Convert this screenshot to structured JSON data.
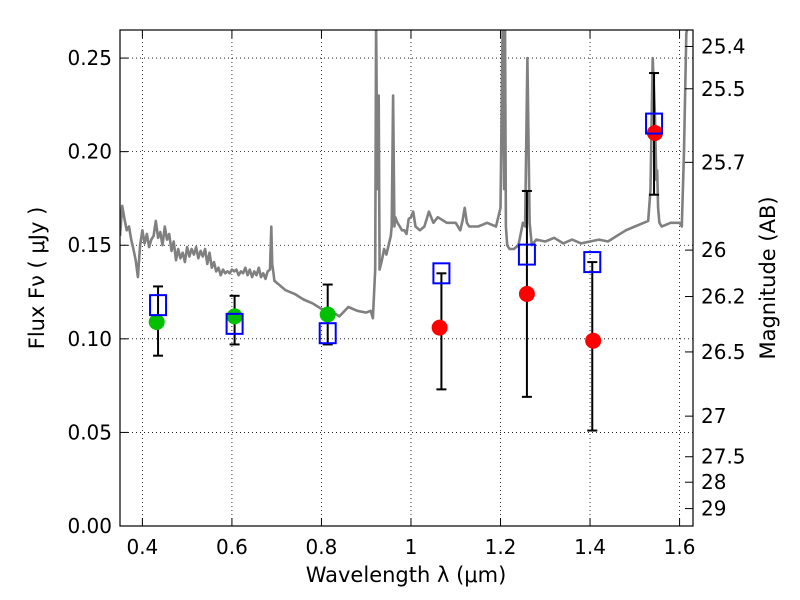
{
  "chart_data": {
    "type": "scatter",
    "xlabel": "Wavelength  λ (μm)",
    "ylabel": "Flux  Fν  ( μJy )",
    "ylabel_right": "Magnitude (AB)",
    "xlim": [
      0.35,
      1.63
    ],
    "ylim": [
      0.0,
      0.265
    ],
    "grid": true,
    "x_ticks": [
      {
        "value": 0.4,
        "label": "0.4"
      },
      {
        "value": 0.6,
        "label": "0.6"
      },
      {
        "value": 0.8,
        "label": "0.8"
      },
      {
        "value": 1.0,
        "label": "1"
      },
      {
        "value": 1.2,
        "label": "1.2"
      },
      {
        "value": 1.4,
        "label": "1.4"
      },
      {
        "value": 1.6,
        "label": "1.6"
      }
    ],
    "y_ticks": [
      {
        "value": 0.0,
        "label": "0.00"
      },
      {
        "value": 0.05,
        "label": "0.05"
      },
      {
        "value": 0.1,
        "label": "0.10"
      },
      {
        "value": 0.15,
        "label": "0.15"
      },
      {
        "value": 0.2,
        "label": "0.20"
      },
      {
        "value": 0.25,
        "label": "0.25"
      }
    ],
    "right_ticks": [
      {
        "label": "25.4",
        "flux": 0.2562
      },
      {
        "label": "25.5",
        "flux": 0.2336
      },
      {
        "label": "25.7",
        "flux": 0.1943
      },
      {
        "label": "26",
        "flux": 0.1474
      },
      {
        "label": "26.2",
        "flux": 0.1226
      },
      {
        "label": "26.5",
        "flux": 0.093
      },
      {
        "label": "27",
        "flux": 0.0587
      },
      {
        "label": "27.5",
        "flux": 0.037
      },
      {
        "label": "28",
        "flux": 0.0234
      },
      {
        "label": "29",
        "flux": 0.0093
      }
    ],
    "series": [
      {
        "name": "green points",
        "marker": "circle",
        "color": "#00c000",
        "points": [
          {
            "x": 0.432,
            "y": 0.109
          },
          {
            "x": 0.606,
            "y": 0.112
          },
          {
            "x": 0.814,
            "y": 0.113
          }
        ]
      },
      {
        "name": "red points",
        "marker": "circle",
        "color": "#ff0000",
        "points": [
          {
            "x": 1.064,
            "y": 0.106
          },
          {
            "x": 1.259,
            "y": 0.124
          },
          {
            "x": 1.407,
            "y": 0.099
          },
          {
            "x": 1.545,
            "y": 0.21
          }
        ]
      },
      {
        "name": "open squares with error bars",
        "marker": "square-open",
        "color": "#0000ff",
        "points": [
          {
            "x": 0.435,
            "y": 0.118,
            "yerr_low": 0.091,
            "yerr_high": 0.128
          },
          {
            "x": 0.606,
            "y": 0.108,
            "yerr_low": 0.097,
            "yerr_high": 0.123
          },
          {
            "x": 0.814,
            "y": 0.103,
            "yerr_low": 0.097,
            "yerr_high": 0.129
          },
          {
            "x": 1.068,
            "y": 0.135,
            "yerr_low": 0.073,
            "yerr_high": 0.135
          },
          {
            "x": 1.259,
            "y": 0.145,
            "yerr_low": 0.069,
            "yerr_high": 0.179
          },
          {
            "x": 1.405,
            "y": 0.141,
            "yerr_low": 0.051,
            "yerr_high": 0.141
          },
          {
            "x": 1.543,
            "y": 0.215,
            "yerr_low": 0.177,
            "yerr_high": 0.242
          }
        ]
      },
      {
        "name": "model spectrum",
        "type": "line",
        "color": "#808080",
        "x": [
          0.35,
          0.355,
          0.36,
          0.365,
          0.37,
          0.375,
          0.38,
          0.385,
          0.39,
          0.395,
          0.4,
          0.405,
          0.41,
          0.415,
          0.42,
          0.425,
          0.43,
          0.435,
          0.44,
          0.445,
          0.45,
          0.455,
          0.46,
          0.465,
          0.47,
          0.475,
          0.48,
          0.485,
          0.49,
          0.495,
          0.5,
          0.505,
          0.51,
          0.515,
          0.52,
          0.525,
          0.53,
          0.535,
          0.54,
          0.545,
          0.55,
          0.555,
          0.56,
          0.565,
          0.57,
          0.575,
          0.58,
          0.585,
          0.59,
          0.595,
          0.6,
          0.605,
          0.61,
          0.615,
          0.62,
          0.625,
          0.63,
          0.635,
          0.64,
          0.645,
          0.65,
          0.655,
          0.66,
          0.665,
          0.67,
          0.675,
          0.68,
          0.685,
          0.688,
          0.69,
          0.693,
          0.695,
          0.7,
          0.72,
          0.74,
          0.76,
          0.78,
          0.8,
          0.82,
          0.84,
          0.86,
          0.88,
          0.9,
          0.91,
          0.915,
          0.92,
          0.922,
          0.925,
          0.928,
          0.93,
          0.935,
          0.94,
          0.945,
          0.95,
          0.955,
          0.957,
          0.96,
          0.963,
          0.965,
          0.97,
          0.975,
          0.98,
          0.985,
          0.99,
          0.995,
          1.0,
          1.005,
          1.01,
          1.02,
          1.03,
          1.04,
          1.05,
          1.06,
          1.08,
          1.1,
          1.11,
          1.115,
          1.12,
          1.125,
          1.13,
          1.14,
          1.15,
          1.16,
          1.17,
          1.18,
          1.19,
          1.2,
          1.205,
          1.208,
          1.21,
          1.212,
          1.215,
          1.22,
          1.23,
          1.24,
          1.25,
          1.255,
          1.26,
          1.265,
          1.27,
          1.28,
          1.3,
          1.32,
          1.34,
          1.36,
          1.38,
          1.4,
          1.42,
          1.44,
          1.46,
          1.48,
          1.5,
          1.52,
          1.53,
          1.535,
          1.54,
          1.545,
          1.548,
          1.55,
          1.552,
          1.555,
          1.56,
          1.57,
          1.58,
          1.6,
          1.605,
          1.61,
          1.615,
          1.62,
          1.63
        ],
        "y": [
          0.155,
          0.171,
          0.164,
          0.158,
          0.16,
          0.153,
          0.148,
          0.142,
          0.133,
          0.15,
          0.158,
          0.151,
          0.156,
          0.149,
          0.153,
          0.155,
          0.163,
          0.154,
          0.157,
          0.15,
          0.16,
          0.153,
          0.156,
          0.147,
          0.152,
          0.142,
          0.148,
          0.143,
          0.146,
          0.141,
          0.149,
          0.144,
          0.148,
          0.145,
          0.149,
          0.143,
          0.147,
          0.144,
          0.148,
          0.14,
          0.146,
          0.138,
          0.141,
          0.136,
          0.138,
          0.134,
          0.137,
          0.135,
          0.136,
          0.135,
          0.137,
          0.136,
          0.137,
          0.134,
          0.136,
          0.135,
          0.138,
          0.134,
          0.137,
          0.133,
          0.136,
          0.134,
          0.138,
          0.133,
          0.135,
          0.132,
          0.136,
          0.137,
          0.16,
          0.14,
          0.135,
          0.131,
          0.13,
          0.126,
          0.124,
          0.121,
          0.119,
          0.116,
          0.115,
          0.112,
          0.117,
          0.115,
          0.114,
          0.115,
          0.111,
          0.137,
          0.27,
          0.18,
          0.23,
          0.137,
          0.142,
          0.148,
          0.145,
          0.15,
          0.155,
          0.16,
          0.23,
          0.16,
          0.165,
          0.162,
          0.16,
          0.158,
          0.158,
          0.156,
          0.164,
          0.165,
          0.168,
          0.16,
          0.158,
          0.16,
          0.168,
          0.162,
          0.165,
          0.162,
          0.162,
          0.158,
          0.163,
          0.17,
          0.162,
          0.16,
          0.16,
          0.16,
          0.161,
          0.162,
          0.161,
          0.16,
          0.17,
          0.27,
          0.18,
          0.27,
          0.16,
          0.15,
          0.148,
          0.148,
          0.15,
          0.162,
          0.16,
          0.25,
          0.162,
          0.15,
          0.153,
          0.152,
          0.154,
          0.151,
          0.153,
          0.151,
          0.152,
          0.153,
          0.152,
          0.155,
          0.158,
          0.16,
          0.162,
          0.163,
          0.18,
          0.25,
          0.22,
          0.185,
          0.19,
          0.17,
          0.162,
          0.16,
          0.161,
          0.162,
          0.162,
          0.16,
          0.2,
          0.263,
          0.27,
          0.27
        ]
      }
    ]
  }
}
